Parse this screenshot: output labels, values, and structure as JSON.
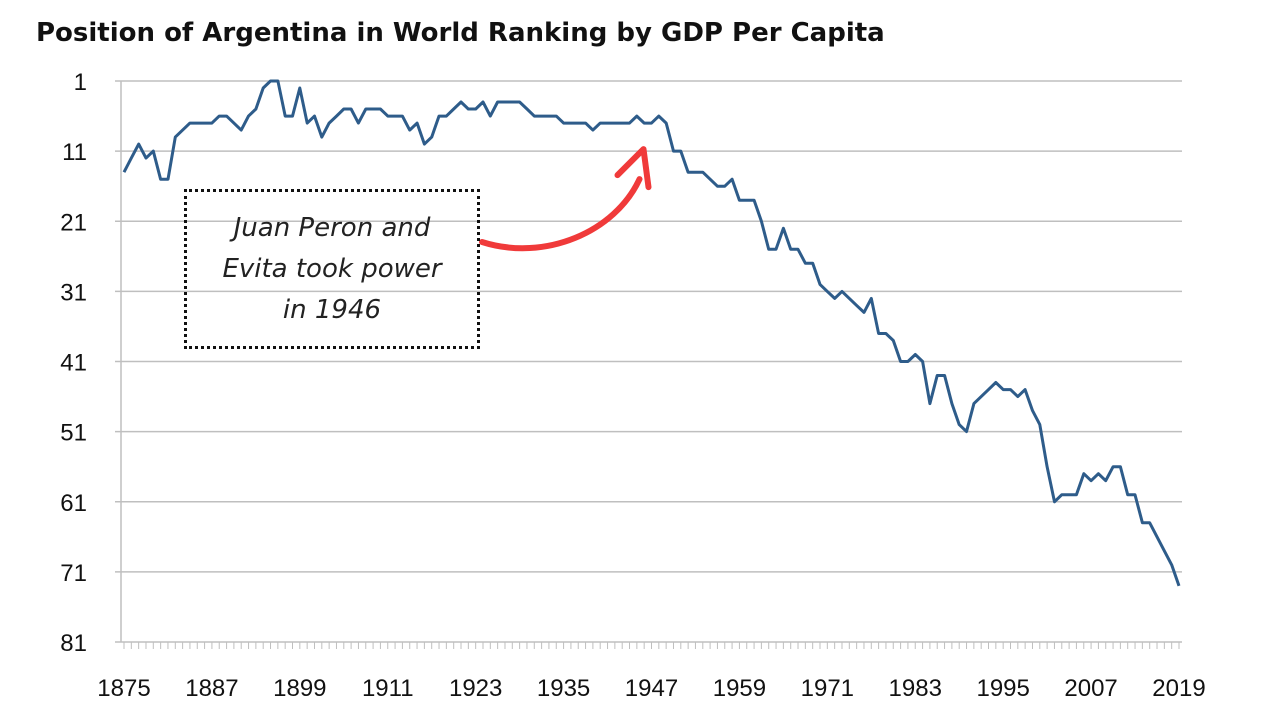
{
  "colors": {
    "line": "#2e5c8a",
    "grid": "#bfbfbf",
    "arrow": "#f03a3a",
    "text": "#111111"
  },
  "chart_data": {
    "type": "line",
    "title": "Position of Argentina in World Ranking by GDP Per Capita",
    "xlabel": "",
    "ylabel": "",
    "y_inverted": true,
    "ylim": [
      81,
      1
    ],
    "xlim": [
      1875,
      2019
    ],
    "y_ticks": [
      1,
      11,
      21,
      31,
      41,
      51,
      61,
      71,
      81
    ],
    "x_ticks": [
      1875,
      1887,
      1899,
      1911,
      1923,
      1935,
      1947,
      1959,
      1971,
      1983,
      1995,
      2007,
      2019
    ],
    "grid": true,
    "legend": "none",
    "series": [
      {
        "values": [
          [
            1875,
            14
          ],
          [
            1876,
            12
          ],
          [
            1877,
            10
          ],
          [
            1878,
            12
          ],
          [
            1879,
            11
          ],
          [
            1880,
            15
          ],
          [
            1881,
            15
          ],
          [
            1882,
            9
          ],
          [
            1883,
            8
          ],
          [
            1884,
            7
          ],
          [
            1885,
            7
          ],
          [
            1886,
            7
          ],
          [
            1887,
            7
          ],
          [
            1888,
            6
          ],
          [
            1889,
            6
          ],
          [
            1890,
            7
          ],
          [
            1891,
            8
          ],
          [
            1892,
            6
          ],
          [
            1893,
            5
          ],
          [
            1894,
            2
          ],
          [
            1895,
            1
          ],
          [
            1896,
            1
          ],
          [
            1897,
            6
          ],
          [
            1898,
            6
          ],
          [
            1899,
            2
          ],
          [
            1900,
            7
          ],
          [
            1901,
            6
          ],
          [
            1902,
            9
          ],
          [
            1903,
            7
          ],
          [
            1904,
            6
          ],
          [
            1905,
            5
          ],
          [
            1906,
            5
          ],
          [
            1907,
            7
          ],
          [
            1908,
            5
          ],
          [
            1909,
            5
          ],
          [
            1910,
            5
          ],
          [
            1911,
            6
          ],
          [
            1912,
            6
          ],
          [
            1913,
            6
          ],
          [
            1914,
            8
          ],
          [
            1915,
            7
          ],
          [
            1916,
            10
          ],
          [
            1917,
            9
          ],
          [
            1918,
            6
          ],
          [
            1919,
            6
          ],
          [
            1920,
            5
          ],
          [
            1921,
            4
          ],
          [
            1922,
            5
          ],
          [
            1923,
            5
          ],
          [
            1924,
            4
          ],
          [
            1925,
            6
          ],
          [
            1926,
            4
          ],
          [
            1927,
            4
          ],
          [
            1928,
            4
          ],
          [
            1929,
            4
          ],
          [
            1930,
            5
          ],
          [
            1931,
            6
          ],
          [
            1932,
            6
          ],
          [
            1933,
            6
          ],
          [
            1934,
            6
          ],
          [
            1935,
            7
          ],
          [
            1936,
            7
          ],
          [
            1937,
            7
          ],
          [
            1938,
            7
          ],
          [
            1939,
            8
          ],
          [
            1940,
            7
          ],
          [
            1941,
            7
          ],
          [
            1942,
            7
          ],
          [
            1943,
            7
          ],
          [
            1944,
            7
          ],
          [
            1945,
            6
          ],
          [
            1946,
            7
          ],
          [
            1947,
            7
          ],
          [
            1948,
            6
          ],
          [
            1949,
            7
          ],
          [
            1950,
            11
          ],
          [
            1951,
            11
          ],
          [
            1952,
            14
          ],
          [
            1953,
            14
          ],
          [
            1954,
            14
          ],
          [
            1955,
            15
          ],
          [
            1956,
            16
          ],
          [
            1957,
            16
          ],
          [
            1958,
            15
          ],
          [
            1959,
            18
          ],
          [
            1960,
            18
          ],
          [
            1961,
            18
          ],
          [
            1962,
            21
          ],
          [
            1963,
            25
          ],
          [
            1964,
            25
          ],
          [
            1965,
            22
          ],
          [
            1966,
            25
          ],
          [
            1967,
            25
          ],
          [
            1968,
            27
          ],
          [
            1969,
            27
          ],
          [
            1970,
            30
          ],
          [
            1971,
            31
          ],
          [
            1972,
            32
          ],
          [
            1973,
            31
          ],
          [
            1974,
            32
          ],
          [
            1975,
            33
          ],
          [
            1976,
            34
          ],
          [
            1977,
            32
          ],
          [
            1978,
            37
          ],
          [
            1979,
            37
          ],
          [
            1980,
            38
          ],
          [
            1981,
            41
          ],
          [
            1982,
            41
          ],
          [
            1983,
            40
          ],
          [
            1984,
            41
          ],
          [
            1985,
            47
          ],
          [
            1986,
            43
          ],
          [
            1987,
            43
          ],
          [
            1988,
            47
          ],
          [
            1989,
            50
          ],
          [
            1990,
            51
          ],
          [
            1991,
            47
          ],
          [
            1992,
            46
          ],
          [
            1993,
            45
          ],
          [
            1994,
            44
          ],
          [
            1995,
            45
          ],
          [
            1996,
            45
          ],
          [
            1997,
            46
          ],
          [
            1998,
            45
          ],
          [
            1999,
            48
          ],
          [
            2000,
            50
          ],
          [
            2001,
            56
          ],
          [
            2002,
            61
          ],
          [
            2003,
            60
          ],
          [
            2004,
            60
          ],
          [
            2005,
            60
          ],
          [
            2006,
            57
          ],
          [
            2007,
            58
          ],
          [
            2008,
            57
          ],
          [
            2009,
            58
          ],
          [
            2010,
            56
          ],
          [
            2011,
            56
          ],
          [
            2012,
            60
          ],
          [
            2013,
            60
          ],
          [
            2014,
            64
          ],
          [
            2015,
            64
          ],
          [
            2016,
            66
          ],
          [
            2017,
            68
          ],
          [
            2018,
            70
          ],
          [
            2019,
            73
          ]
        ]
      }
    ],
    "annotations": [
      {
        "text": "Juan Peron and\nEvita took power\nin 1946",
        "arrow_to_year": 1947,
        "arrow_to_rank": 11
      }
    ]
  }
}
